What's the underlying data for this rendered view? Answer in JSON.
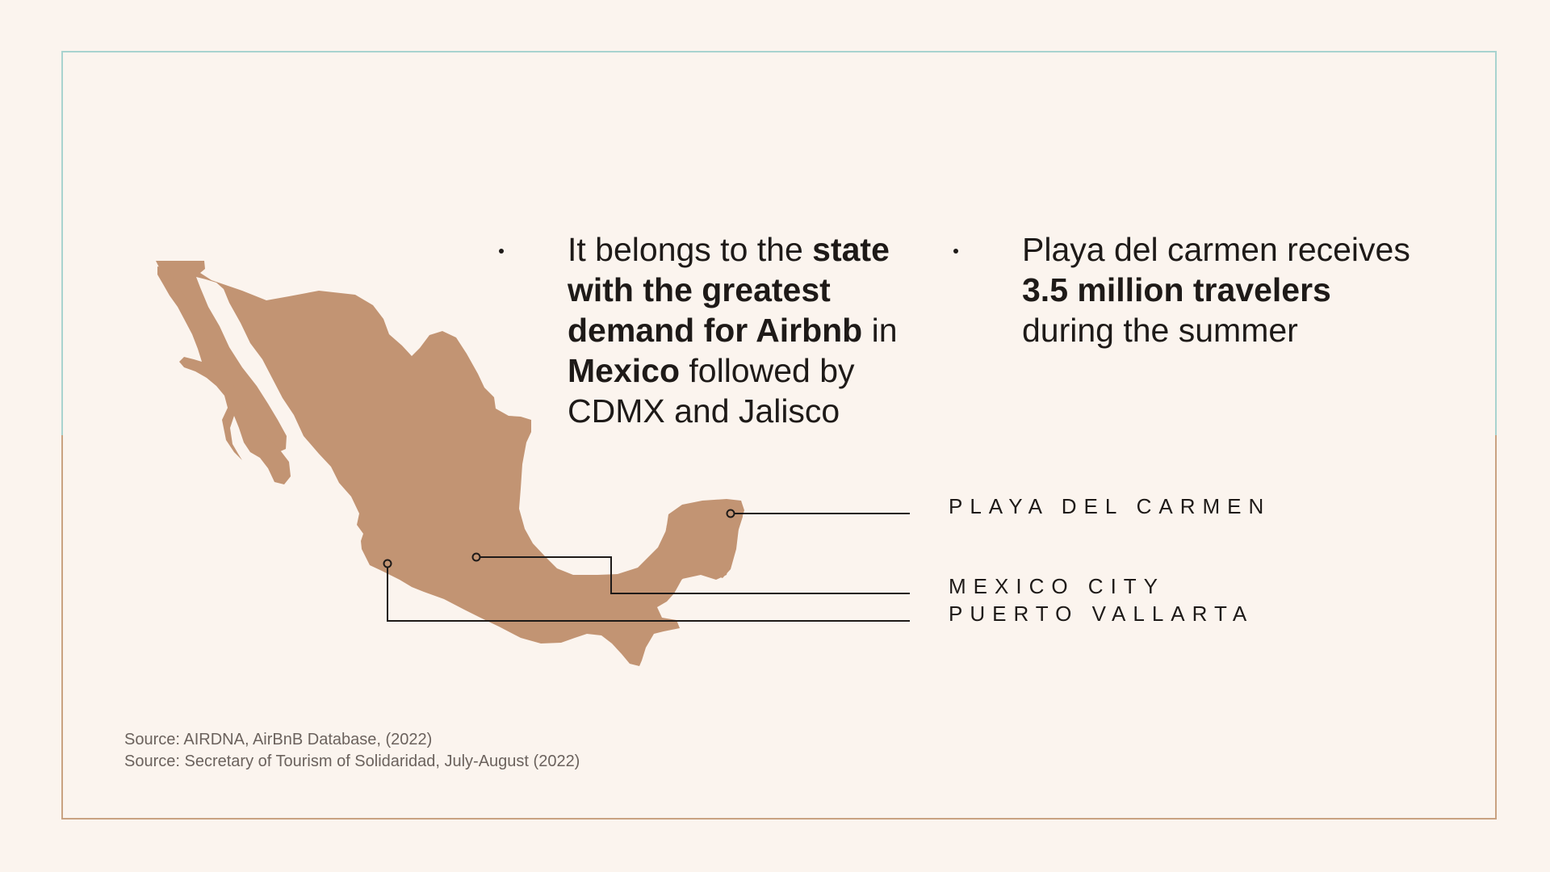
{
  "bullets": [
    {
      "segments": [
        {
          "text": "It belongs to the ",
          "bold": false
        },
        {
          "text": "state with the greatest demand for Airbnb",
          "bold": true
        },
        {
          "text": " in ",
          "bold": false
        },
        {
          "text": "Mexico",
          "bold": true
        },
        {
          "text": " followed by CDMX and Jalisco",
          "bold": false
        }
      ]
    },
    {
      "segments": [
        {
          "text": "Playa del carmen receives ",
          "bold": false
        },
        {
          "text": "3.5 million travelers",
          "bold": true
        },
        {
          "text": " during the summer",
          "bold": false
        }
      ]
    }
  ],
  "cities": {
    "playa": "PLAYA DEL CARMEN",
    "cdmx": "MEXICO CITY",
    "vallarta": "PUERTO VALLARTA"
  },
  "sources": [
    "Source: AIRDNA, AirBnB Database, (2022)",
    "Source: Secretary of Tourism of Solidaridad, July-August (2022)"
  ],
  "colors": {
    "background": "#fbf4ee",
    "map_fill": "#c29473",
    "frame_top": "#a8d3cf",
    "frame_bottom": "#c9a281",
    "text": "#1e1a18"
  }
}
